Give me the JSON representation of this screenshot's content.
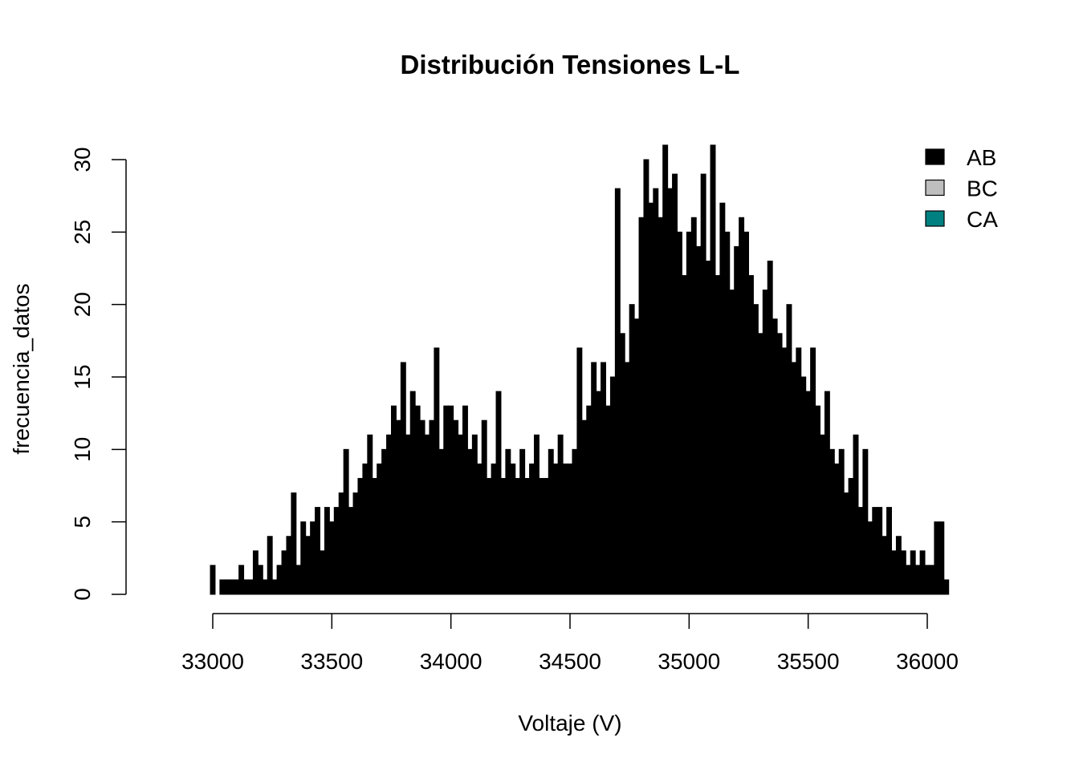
{
  "chart_data": {
    "type": "bar",
    "title": "Distribución Tensiones L-L",
    "xlabel": "Voltaje (V)",
    "ylabel": "frecuencia_datos",
    "xlim": [
      33000,
      36000
    ],
    "ylim": [
      0,
      30
    ],
    "x_ticks": [
      "33000",
      "33500",
      "34000",
      "34500",
      "35000",
      "35500",
      "36000"
    ],
    "y_ticks": [
      "0",
      "5",
      "10",
      "15",
      "20",
      "25",
      "30"
    ],
    "x_start": 32990,
    "bin_width": 20,
    "grid": false,
    "legend_position": "top-right",
    "legend": [
      {
        "label": "AB",
        "color": "#000000"
      },
      {
        "label": "BC",
        "color": "#bebebe"
      },
      {
        "label": "CA",
        "color": "#008080"
      }
    ],
    "series": [
      {
        "name": "AB",
        "color": "#000000",
        "values": [
          2,
          0,
          1,
          1,
          1,
          1,
          2,
          1,
          1,
          3,
          2,
          1,
          4,
          1,
          2,
          3,
          4,
          7,
          2,
          5,
          4,
          5,
          6,
          3,
          6,
          5,
          6,
          7,
          10,
          6,
          7,
          8,
          9,
          11,
          8,
          9,
          10,
          11,
          13,
          12,
          16,
          11,
          14,
          13,
          12,
          11,
          12,
          17,
          10,
          13,
          13,
          12,
          11,
          13,
          10,
          11,
          9,
          12,
          8,
          9,
          14,
          8,
          10,
          9,
          8,
          10,
          8,
          9,
          11,
          8,
          8,
          10,
          9,
          11,
          9,
          9,
          10,
          17,
          12,
          13,
          16,
          14,
          16,
          13,
          15,
          28,
          18,
          16,
          20,
          19,
          26,
          30,
          27,
          28,
          26,
          31,
          28,
          29,
          25,
          22,
          25,
          26,
          24,
          29,
          23,
          31,
          22,
          27,
          25,
          21,
          24,
          26,
          25,
          22,
          20,
          18,
          21,
          23,
          19,
          18,
          17,
          20,
          16,
          17,
          15,
          14,
          17,
          13,
          11,
          14,
          10,
          9,
          10,
          7,
          8,
          11,
          6,
          10,
          5,
          6,
          6,
          4,
          6,
          3,
          4,
          3,
          2,
          3,
          2,
          3,
          2,
          2,
          5,
          5,
          1
        ]
      }
    ]
  }
}
